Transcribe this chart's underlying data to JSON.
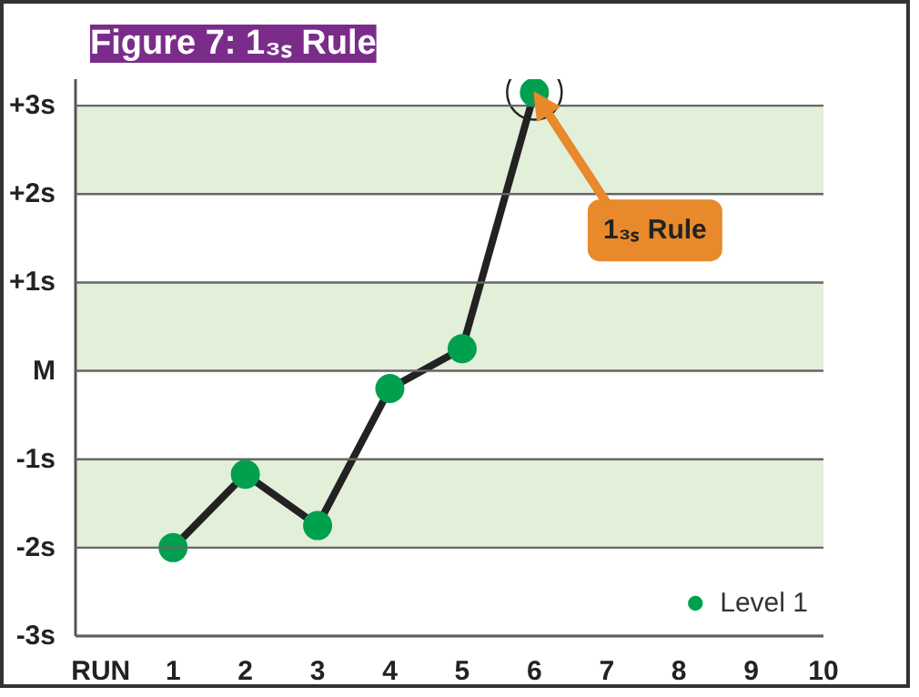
{
  "chart_data": {
    "type": "line",
    "title": "Figure 7: 1₃ₛ Rule",
    "x": [
      1,
      2,
      3,
      4,
      5,
      6
    ],
    "series": [
      {
        "name": "Level 1",
        "color": "#00a04f",
        "values": [
          -2,
          -1.17,
          -1.75,
          -0.2,
          0.25,
          3.15
        ]
      }
    ],
    "xlim": [
      -0.35,
      10
    ],
    "xticks": [
      {
        "value": 0,
        "label": "RUN"
      },
      1,
      2,
      3,
      4,
      5,
      6,
      7,
      8,
      9,
      10
    ],
    "ylim": [
      -3,
      3.3
    ],
    "yticks": [
      {
        "value": -3,
        "label": "-3s"
      },
      {
        "value": -2,
        "label": "-2s"
      },
      {
        "value": -1,
        "label": "-1s"
      },
      {
        "value": 0,
        "label": "M"
      },
      {
        "value": 1,
        "label": "+1s"
      },
      {
        "value": 2,
        "label": "+2s"
      },
      {
        "value": 3,
        "label": "+3s"
      }
    ],
    "bands": [
      {
        "axis": "y",
        "from": 2,
        "to": 3,
        "color": "#e2efd9"
      },
      {
        "axis": "y",
        "from": 0,
        "to": 1,
        "color": "#e2efd9"
      },
      {
        "axis": "y",
        "from": -2,
        "to": -1,
        "color": "#e2efd9"
      }
    ],
    "annotations": [
      {
        "text": "1₃ₛ Rule",
        "x": 6,
        "y": 3.15
      }
    ],
    "grid": "y",
    "legend": "bottom right",
    "marker": "circle",
    "line_style": "solid"
  }
}
